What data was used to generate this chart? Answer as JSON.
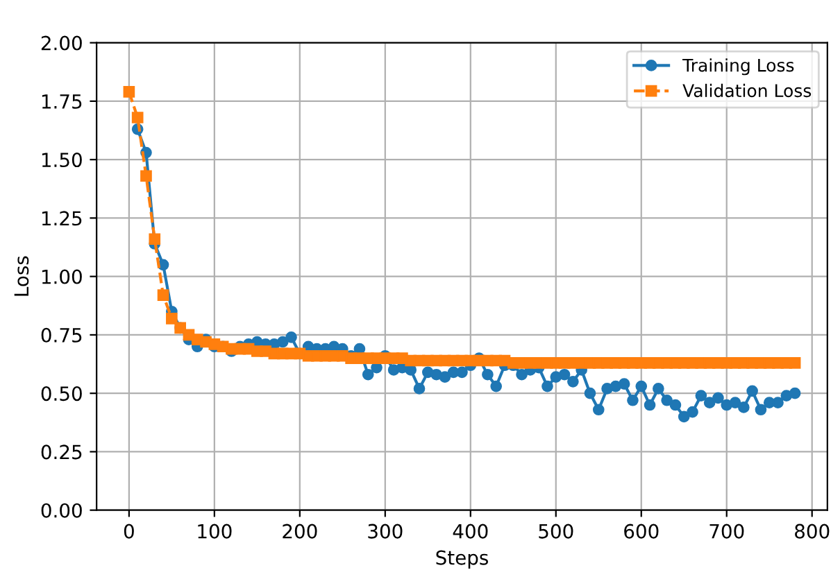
{
  "chart_data": {
    "type": "line",
    "xlabel": "Steps",
    "ylabel": "Loss",
    "xlim": [
      -38,
      818
    ],
    "ylim": [
      0,
      2.0
    ],
    "xticks": [
      0,
      100,
      200,
      300,
      400,
      500,
      600,
      700,
      800
    ],
    "yticks": [
      {
        "value": 0,
        "label": "0.00"
      },
      {
        "value": 0.25,
        "label": "0.25"
      },
      {
        "value": 0.5,
        "label": "0.50"
      },
      {
        "value": 0.75,
        "label": "0.75"
      },
      {
        "value": 1.0,
        "label": "1.00"
      },
      {
        "value": 1.25,
        "label": "1.25"
      },
      {
        "value": 1.5,
        "label": "1.50"
      },
      {
        "value": 1.75,
        "label": "1.75"
      },
      {
        "value": 2.0,
        "label": "2.00"
      }
    ],
    "grid": true,
    "legend": "top right",
    "series": [
      {
        "name": "Training Loss",
        "color": "#1f77b4",
        "marker": "circle",
        "line_style": "solid",
        "x": [
          10,
          20,
          30,
          40,
          50,
          60,
          70,
          80,
          90,
          100,
          110,
          120,
          130,
          140,
          150,
          160,
          170,
          180,
          190,
          200,
          210,
          220,
          230,
          240,
          250,
          260,
          270,
          280,
          290,
          300,
          310,
          320,
          330,
          340,
          350,
          360,
          370,
          380,
          390,
          400,
          410,
          420,
          430,
          440,
          450,
          460,
          470,
          480,
          490,
          500,
          510,
          520,
          530,
          540,
          550,
          560,
          570,
          580,
          590,
          600,
          610,
          620,
          630,
          640,
          650,
          660,
          670,
          680,
          690,
          700,
          710,
          720,
          730,
          740,
          750,
          760,
          770,
          780
        ],
        "values": [
          1.63,
          1.53,
          1.14,
          1.05,
          0.85,
          0.78,
          0.73,
          0.7,
          0.73,
          0.7,
          0.7,
          0.68,
          0.7,
          0.71,
          0.72,
          0.71,
          0.71,
          0.72,
          0.74,
          0.67,
          0.7,
          0.69,
          0.69,
          0.7,
          0.69,
          0.66,
          0.69,
          0.58,
          0.61,
          0.66,
          0.6,
          0.61,
          0.6,
          0.52,
          0.59,
          0.58,
          0.57,
          0.59,
          0.59,
          0.62,
          0.65,
          0.58,
          0.53,
          0.62,
          0.62,
          0.58,
          0.6,
          0.61,
          0.53,
          0.57,
          0.58,
          0.55,
          0.6,
          0.5,
          0.43,
          0.52,
          0.53,
          0.54,
          0.47,
          0.53,
          0.45,
          0.52,
          0.47,
          0.45,
          0.4,
          0.42,
          0.49,
          0.46,
          0.48,
          0.45,
          0.46,
          0.44,
          0.51,
          0.43,
          0.46,
          0.46,
          0.49,
          0.5
        ]
      },
      {
        "name": "Validation Loss",
        "color": "#ff7f0e",
        "marker": "square",
        "line_style": "dashed",
        "x": [
          0,
          10,
          20,
          30,
          40,
          50,
          60,
          70,
          80,
          90,
          100,
          110,
          120,
          130,
          140,
          150,
          160,
          170,
          180,
          190,
          200,
          210,
          220,
          230,
          240,
          250,
          260,
          270,
          280,
          290,
          300,
          310,
          320,
          330,
          340,
          350,
          360,
          370,
          380,
          390,
          400,
          410,
          420,
          430,
          440,
          450,
          460,
          470,
          480,
          490,
          500,
          510,
          520,
          530,
          540,
          550,
          560,
          570,
          580,
          590,
          600,
          610,
          620,
          630,
          640,
          650,
          660,
          670,
          680,
          690,
          700,
          710,
          720,
          730,
          740,
          750,
          760,
          770,
          780
        ],
        "values": [
          1.79,
          1.68,
          1.43,
          1.16,
          0.92,
          0.82,
          0.78,
          0.75,
          0.73,
          0.72,
          0.71,
          0.7,
          0.69,
          0.69,
          0.69,
          0.68,
          0.68,
          0.67,
          0.67,
          0.67,
          0.67,
          0.66,
          0.66,
          0.66,
          0.66,
          0.66,
          0.65,
          0.65,
          0.65,
          0.65,
          0.65,
          0.65,
          0.65,
          0.64,
          0.64,
          0.64,
          0.64,
          0.64,
          0.64,
          0.64,
          0.64,
          0.64,
          0.64,
          0.64,
          0.64,
          0.63,
          0.63,
          0.63,
          0.63,
          0.63,
          0.63,
          0.63,
          0.63,
          0.63,
          0.63,
          0.63,
          0.63,
          0.63,
          0.63,
          0.63,
          0.63,
          0.63,
          0.63,
          0.63,
          0.63,
          0.63,
          0.63,
          0.63,
          0.63,
          0.63,
          0.63,
          0.63,
          0.63,
          0.63,
          0.63,
          0.63,
          0.63,
          0.63,
          0.63
        ]
      }
    ]
  }
}
